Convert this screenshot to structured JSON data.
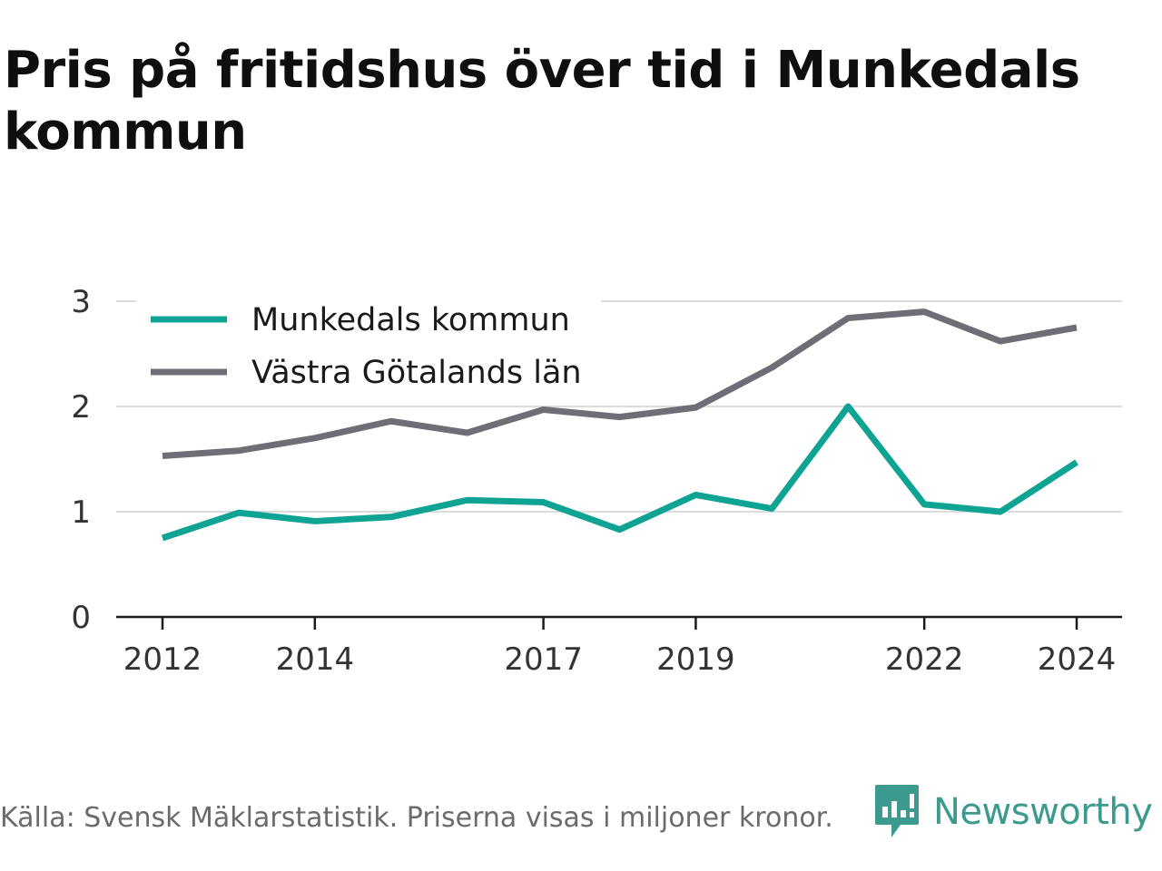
{
  "title": "Pris på fritidshus över tid i Munkedals kommun",
  "footer": {
    "source": "Källa: Svensk Mäklarstatistik. Priserna visas i miljoner kronor."
  },
  "brand": {
    "name": "Newsworthy",
    "icon": "newsworthy-logo-icon",
    "color": "#3c9a8e"
  },
  "chart_data": {
    "type": "line",
    "title": "Pris på fritidshus över tid i Munkedals kommun",
    "x": [
      2012,
      2013,
      2014,
      2015,
      2016,
      2017,
      2018,
      2019,
      2020,
      2021,
      2022,
      2023,
      2024
    ],
    "x_tick_labels": [
      "2012",
      "2014",
      "2017",
      "2019",
      "2022",
      "2024"
    ],
    "x_ticks": [
      2012,
      2014,
      2017,
      2019,
      2022,
      2024
    ],
    "y_ticks": [
      0,
      1,
      2,
      3
    ],
    "y_tick_labels": [
      "0",
      "1",
      "2",
      "3"
    ],
    "ylim": [
      0,
      3
    ],
    "grid": true,
    "legend_position": "top-left",
    "series": [
      {
        "name": "Munkedals kommun",
        "color": "#0fa394",
        "values": [
          0.75,
          0.99,
          0.91,
          0.95,
          1.11,
          1.09,
          0.83,
          1.16,
          1.03,
          2.0,
          1.07,
          1.0,
          1.47
        ]
      },
      {
        "name": "Västra Götalands län",
        "color": "#6f6e76",
        "values": [
          1.53,
          1.58,
          1.7,
          1.86,
          1.75,
          1.97,
          1.9,
          1.99,
          2.37,
          2.84,
          2.9,
          2.62,
          2.75
        ]
      }
    ]
  }
}
